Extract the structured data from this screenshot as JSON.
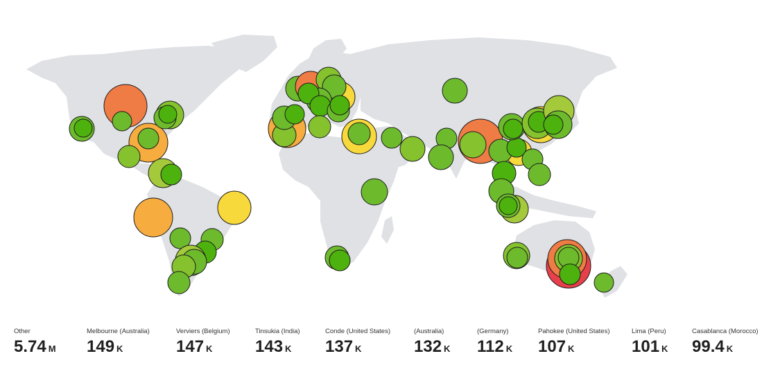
{
  "colors": {
    "land": "#dfe1e5",
    "red": "#e8404a",
    "orange": "#ef7b45",
    "amber": "#f6ac3e",
    "yellow": "#f8d93b",
    "lime": "#a4c93b",
    "green": "#6dbb2d",
    "deep_green": "#4db20e"
  },
  "stats": [
    {
      "label": "Other",
      "value": "5.74",
      "unit": "M"
    },
    {
      "label": "Melbourne (Australia)",
      "value": "149",
      "unit": "K"
    },
    {
      "label": "Verviers (Belgium)",
      "value": "147",
      "unit": "K"
    },
    {
      "label": "Tinsukia (India)",
      "value": "143",
      "unit": "K"
    },
    {
      "label": "Conde (United States)",
      "value": "137",
      "unit": "K"
    },
    {
      "label": "(Australia)",
      "value": "132",
      "unit": "K"
    },
    {
      "label": "(Germany)",
      "value": "112",
      "unit": "K"
    },
    {
      "label": "Pahokee (United States)",
      "value": "107",
      "unit": "K"
    },
    {
      "label": "Lima (Peru)",
      "value": "101",
      "unit": "K"
    },
    {
      "label": "Casablanca (Morocco)",
      "value": "99.4",
      "unit": "K"
    }
  ]
}
